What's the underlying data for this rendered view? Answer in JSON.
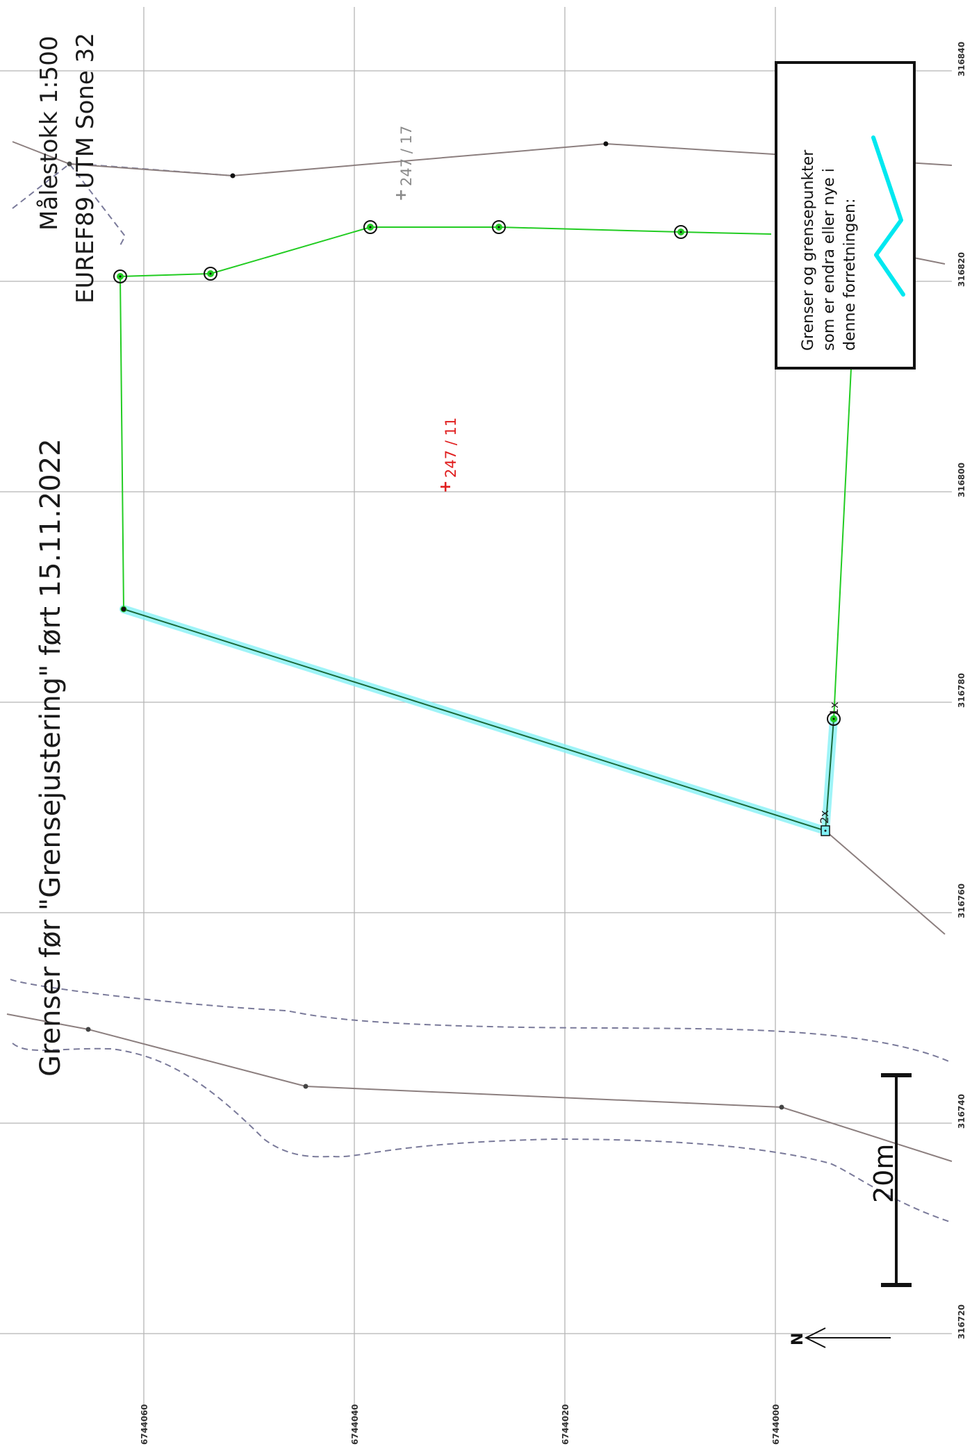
{
  "title": "Grenser før \"Grensejustering\" ført 15.11.2022",
  "scale": {
    "text": "Målestokk 1:500",
    "crs": "EUREF89 UTM Sone 32",
    "bar_label": "20m",
    "bar_length_m": 20
  },
  "north": {
    "label": "N",
    "arrow": "north-arrow"
  },
  "legend": {
    "lines": [
      "Grenser og grensepunkter",
      "som er endra eller nye i",
      "denne forretningen:"
    ],
    "symbol_color": "#00e8f0"
  },
  "parcels": [
    {
      "label": "247 / 11",
      "color": "#e01e1e"
    },
    {
      "label": "247 / 17",
      "color": "#8a8a8a"
    }
  ],
  "point_labels": [
    "1x",
    "2x"
  ],
  "grid": {
    "easting": [
      "316720",
      "316740",
      "316760",
      "316780",
      "316800",
      "316820",
      "316840"
    ],
    "northing": [
      "6744060",
      "6744040",
      "6744020",
      "6744000"
    ]
  },
  "colors": {
    "new_boundary": "#22cc22",
    "changed_highlight": "#00e8f0",
    "existing_boundary": "#8c7f7f",
    "road_edge": "#7a7a9a",
    "grid": "#b5b5b5"
  }
}
